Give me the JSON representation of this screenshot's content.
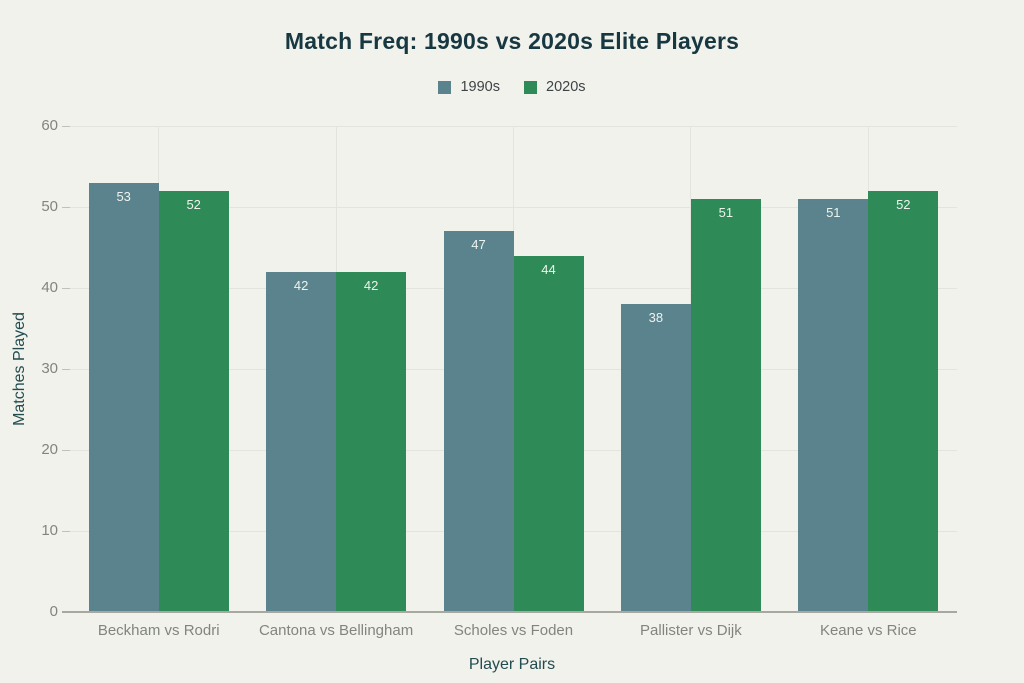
{
  "chart_data": {
    "type": "bar",
    "title": "Match Freq: 1990s vs 2020s Elite Players",
    "xlabel": "Player Pairs",
    "ylabel": "Matches Played",
    "categories": [
      "Beckham vs Rodri",
      "Cantona vs Bellingham",
      "Scholes vs Foden",
      "Pallister vs Dijk",
      "Keane vs Rice"
    ],
    "series": [
      {
        "name": "1990s",
        "color": "#5b838e",
        "values": [
          53,
          42,
          47,
          38,
          51
        ]
      },
      {
        "name": "2020s",
        "color": "#2e8a56",
        "values": [
          52,
          42,
          44,
          51,
          52
        ]
      }
    ],
    "ylim": [
      0,
      60
    ],
    "yticks": [
      0,
      10,
      20,
      30,
      40,
      50,
      60
    ],
    "grid": "horizontal lines at each y tick plus vertical line at each category center",
    "legend_position": "top-center",
    "value_labels": "inside top of each bar"
  },
  "colors": {
    "background": "#f1f2ec",
    "title_text": "#173741",
    "axis_title_text": "#234c50",
    "tick_label_text": "#82857e",
    "gridline": "#e3e4de",
    "tick_mark": "#c0c1b9",
    "axis_line": "#a7a8a0",
    "value_label_text": "#eef3ec"
  }
}
